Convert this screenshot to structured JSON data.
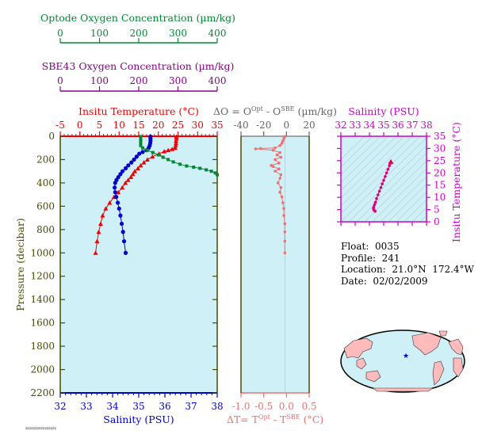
{
  "colors": {
    "oxygen_optode": "#008833",
    "oxygen_sbe": "#880088",
    "temperature": "#ee0000",
    "salinity": "#0000cc",
    "pressure_axis": "#4a4a00",
    "delta": "#f07070",
    "delta_o_label": "#666666",
    "inset_axis": "#cc00cc",
    "panel_bg": "#d0f0f8",
    "land": "#ffbbbb",
    "float_marker": "#0000cc"
  },
  "top_axes": {
    "optode": {
      "title": "Optode Oxygen Concentration (µm/kg)",
      "ticks": [
        "0",
        "100",
        "200",
        "300",
        "400"
      ]
    },
    "sbe43": {
      "title": "SBE43 Oxygen Concentration (µm/kg)",
      "ticks": [
        "0",
        "100",
        "200",
        "300",
        "400"
      ]
    }
  },
  "main_panel": {
    "temp_title": "Insitu Temperature (°C)",
    "temp_ticks": [
      "-5",
      "0",
      "5",
      "10",
      "15",
      "20",
      "25",
      "30",
      "35"
    ],
    "sal_title": "Salinity (PSU)",
    "sal_ticks": [
      "32",
      "33",
      "34",
      "35",
      "36",
      "37",
      "38"
    ],
    "pressure_title": "Pressure (decibar)",
    "pressure_ticks": [
      "0",
      "200",
      "400",
      "600",
      "800",
      "1000",
      "1200",
      "1400",
      "1600",
      "1800",
      "2000",
      "2200"
    ],
    "footnote": "ZZZZZZZZZZZZZZZZ"
  },
  "delta_panel": {
    "top_title_prefix": "ΔO = O",
    "top_title_sup1": "Opt",
    "top_title_mid": " - O",
    "top_title_sup2": "SBE",
    "top_title_suffix": " (µm/kg)",
    "top_ticks": [
      "-40",
      "-20",
      "0",
      "20"
    ],
    "bottom_title_prefix": "ΔT= T",
    "bottom_title_sup1": "Opt",
    "bottom_title_mid": " - T",
    "bottom_title_sup2": "SBE",
    "bottom_title_suffix": " (°C)",
    "bottom_ticks": [
      "-1.0",
      "-0.5",
      "0.0",
      "0.5"
    ]
  },
  "ts_inset": {
    "sal_title": "Salinity (PSU)",
    "sal_ticks": [
      "32",
      "33",
      "34",
      "35",
      "36",
      "37",
      "38"
    ],
    "temp_title": "Insitu Temperature (°C)",
    "temp_ticks": [
      "0",
      "5",
      "10",
      "15",
      "20",
      "25",
      "30",
      "35"
    ]
  },
  "info": {
    "float": "Float:  0035",
    "profile": "Profile:  241",
    "location": "Location:  21.0°N  172.4°W",
    "date": "Date:  02/02/2009"
  },
  "chart_data": [
    {
      "type": "line",
      "name_hint": "profiles",
      "title": "",
      "ylabel": "Pressure (decibar)",
      "ylim": [
        2200,
        0
      ],
      "series": [
        {
          "name": "Insitu Temperature (°C)",
          "axis": "temperature",
          "xlim": [
            -5,
            35
          ],
          "marker": "triangle",
          "points": [
            [
              24.6,
              3
            ],
            [
              24.6,
              20
            ],
            [
              24.5,
              40
            ],
            [
              24.5,
              60
            ],
            [
              24.4,
              80
            ],
            [
              24.3,
              100
            ],
            [
              23.5,
              110
            ],
            [
              22.5,
              120
            ],
            [
              21.5,
              130
            ],
            [
              20.2,
              150
            ],
            [
              18.5,
              175
            ],
            [
              17.2,
              200
            ],
            [
              16.3,
              225
            ],
            [
              15.5,
              250
            ],
            [
              14.8,
              275
            ],
            [
              14.0,
              300
            ],
            [
              13.5,
              325
            ],
            [
              13.0,
              350
            ],
            [
              12.3,
              375
            ],
            [
              11.6,
              400
            ],
            [
              10.8,
              440
            ],
            [
              9.8,
              480
            ],
            [
              8.7,
              520
            ],
            [
              7.6,
              570
            ],
            [
              6.6,
              620
            ],
            [
              5.8,
              680
            ],
            [
              5.3,
              750
            ],
            [
              4.8,
              820
            ],
            [
              4.4,
              900
            ],
            [
              4.0,
              1000
            ]
          ]
        },
        {
          "name": "Salinity (PSU)",
          "axis": "salinity",
          "xlim": [
            32,
            38
          ],
          "marker": "circle",
          "points": [
            [
              35.45,
              3
            ],
            [
              35.45,
              20
            ],
            [
              35.45,
              40
            ],
            [
              35.44,
              60
            ],
            [
              35.42,
              80
            ],
            [
              35.38,
              100
            ],
            [
              35.3,
              120
            ],
            [
              35.15,
              135
            ],
            [
              35.02,
              150
            ],
            [
              34.92,
              175
            ],
            [
              34.82,
              200
            ],
            [
              34.72,
              225
            ],
            [
              34.6,
              250
            ],
            [
              34.5,
              275
            ],
            [
              34.38,
              300
            ],
            [
              34.3,
              325
            ],
            [
              34.22,
              350
            ],
            [
              34.15,
              375
            ],
            [
              34.1,
              400
            ],
            [
              34.08,
              440
            ],
            [
              34.1,
              480
            ],
            [
              34.14,
              520
            ],
            [
              34.2,
              570
            ],
            [
              34.25,
              620
            ],
            [
              34.3,
              680
            ],
            [
              34.35,
              750
            ],
            [
              34.4,
              820
            ],
            [
              34.44,
              900
            ],
            [
              34.5,
              1000
            ]
          ]
        },
        {
          "name": "Optode Oxygen Concentration (µm/kg)",
          "axis": "oxygen",
          "xlim": [
            0,
            400
          ],
          "marker": "square",
          "points": [
            [
              205,
              3
            ],
            [
              205,
              20
            ],
            [
              205,
              40
            ],
            [
              205,
              60
            ],
            [
              205,
              80
            ],
            [
              210,
              100
            ],
            [
              222,
              120
            ],
            [
              236,
              140
            ],
            [
              250,
              160
            ],
            [
              262,
              180
            ],
            [
              275,
              200
            ],
            [
              288,
              220
            ],
            [
              305,
              240
            ],
            [
              322,
              255
            ],
            [
              340,
              265
            ],
            [
              356,
              275
            ],
            [
              372,
              288
            ],
            [
              385,
              300
            ],
            [
              395,
              315
            ],
            [
              400,
              330
            ]
          ]
        }
      ]
    },
    {
      "type": "scatter",
      "name_hint": "delta",
      "ylim": [
        2200,
        0
      ],
      "series": [
        {
          "name": "ΔO (µm/kg)",
          "xlim": [
            -45,
            25
          ],
          "top_axis": true,
          "points": [
            [
              0,
              3
            ],
            [
              -1,
              20
            ],
            [
              -2,
              40
            ],
            [
              -3,
              60
            ],
            [
              -5,
              80
            ],
            [
              -10,
              100
            ],
            [
              -25,
              105
            ],
            [
              -30,
              108
            ],
            [
              -12,
              120
            ],
            [
              -5,
              140
            ],
            [
              -8,
              160
            ],
            [
              -4,
              180
            ],
            [
              -10,
              200
            ],
            [
              -6,
              230
            ],
            [
              -14,
              250
            ],
            [
              -12,
              260
            ],
            [
              -6,
              280
            ],
            [
              -10,
              300
            ],
            [
              -4,
              330
            ],
            [
              -5,
              360
            ],
            [
              -7,
              400
            ],
            [
              -4,
              440
            ],
            [
              -5,
              480
            ],
            [
              -3,
              520
            ],
            [
              -2,
              570
            ],
            [
              -1,
              620
            ],
            [
              -1,
              680
            ],
            [
              0,
              750
            ],
            [
              0,
              820
            ],
            [
              0,
              900
            ],
            [
              0,
              1000
            ]
          ]
        }
      ]
    },
    {
      "type": "scatter",
      "name_hint": "ts_inset",
      "xlabel": "Salinity (PSU)",
      "ylabel": "Insitu Temperature (°C)",
      "xlim": [
        32,
        38
      ],
      "ylim": [
        0,
        35
      ],
      "series": [
        {
          "name": "T-S",
          "points": [
            [
              35.5,
              24.5
            ],
            [
              35.45,
              24
            ],
            [
              35.4,
              23
            ],
            [
              35.3,
              21.5
            ],
            [
              35.2,
              20
            ],
            [
              35.1,
              18.5
            ],
            [
              35.0,
              17
            ],
            [
              34.9,
              15.5
            ],
            [
              34.8,
              14
            ],
            [
              34.7,
              12.5
            ],
            [
              34.6,
              11
            ],
            [
              34.5,
              9.5
            ],
            [
              34.42,
              8
            ],
            [
              34.36,
              7
            ],
            [
              34.3,
              6
            ],
            [
              34.28,
              5.3
            ],
            [
              34.32,
              4.8
            ],
            [
              34.4,
              4.3
            ]
          ]
        }
      ]
    }
  ],
  "map": {
    "float_lat": 21.0,
    "float_lon": -172.4
  }
}
